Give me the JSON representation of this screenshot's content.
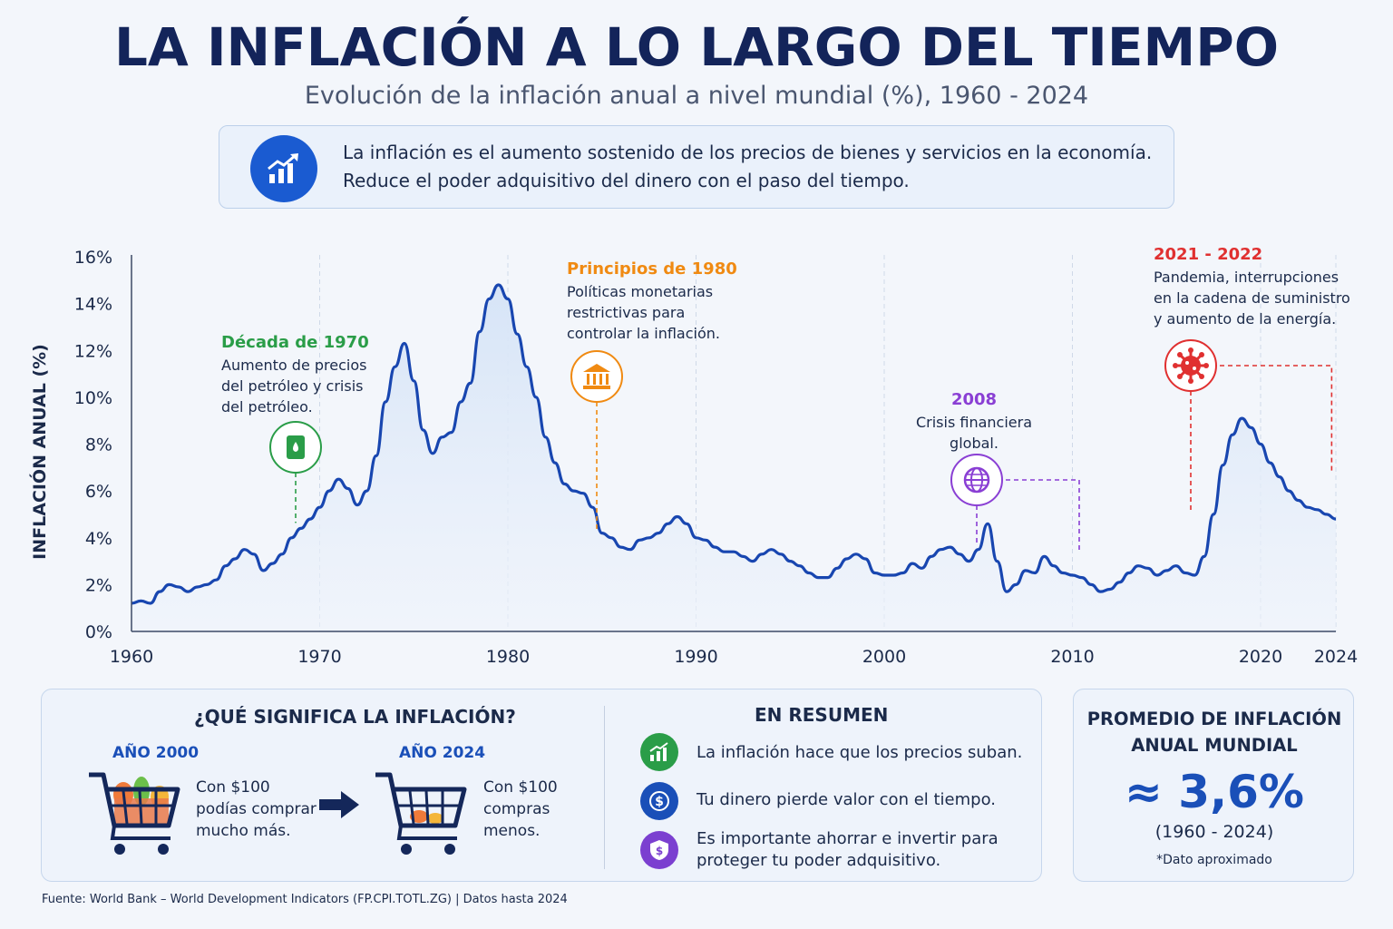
{
  "title": "LA INFLACIÓN A LO LARGO DEL TIEMPO",
  "subtitle": "Evolución de la inflación anual a nivel mundial (%), 1960 - 2024",
  "intro": {
    "line1": "La inflación es el aumento sostenido de los precios de bienes y servicios en la economía.",
    "line2": "Reduce el poder adquisitivo del dinero con el paso del tiempo.",
    "icon": "chart-growth-icon"
  },
  "chart_data": {
    "type": "area",
    "ylabel": "INFLACIÓN ANUAL (%)",
    "xlabel": "",
    "xlim": [
      1960,
      2024
    ],
    "ylim": [
      0,
      16
    ],
    "x_ticks": [
      "1960",
      "1970",
      "1980",
      "1990",
      "2000",
      "2010",
      "2020",
      "2024"
    ],
    "y_ticks": [
      "0%",
      "2%",
      "4%",
      "6%",
      "8%",
      "10%",
      "12%",
      "14%",
      "16%"
    ],
    "grid": "vertical-dashed",
    "line_color": "#1846b0",
    "fill_color": "#d6e4f7",
    "series": [
      {
        "x": [
          1960,
          1960.5,
          1961,
          1961.5,
          1962,
          1962.5,
          1963,
          1963.5,
          1964,
          1964.5,
          1965,
          1965.5,
          1966,
          1966.5,
          1967,
          1967.5,
          1968,
          1968.5,
          1969,
          1969.5,
          1970,
          1970.5,
          1971,
          1971.5,
          1972,
          1972.5,
          1973,
          1973.5,
          1974,
          1974.5,
          1975,
          1975.5,
          1976,
          1976.5,
          1977,
          1977.5,
          1978,
          1978.5,
          1979,
          1979.5,
          1980,
          1980.5,
          1981,
          1981.5,
          1982,
          1982.5,
          1983,
          1983.5,
          1984,
          1984.5,
          1985,
          1985.5,
          1986,
          1986.5,
          1987,
          1987.5,
          1988,
          1988.5,
          1989,
          1989.5,
          1990,
          1990.5,
          1991,
          1991.5,
          1992,
          1992.5,
          1993,
          1993.5,
          1994,
          1994.5,
          1995,
          1995.5,
          1996,
          1996.5,
          1997,
          1997.5,
          1998,
          1998.5,
          1999,
          1999.5,
          2000,
          2000.5,
          2001,
          2001.5,
          2002,
          2002.5,
          2003,
          2003.5,
          2004,
          2004.5,
          2005,
          2005.5,
          2006,
          2006.5,
          2007,
          2007.5,
          2008,
          2008.5,
          2009,
          2009.5,
          2010,
          2010.5,
          2011,
          2011.5,
          2012,
          2012.5,
          2013,
          2013.5,
          2014,
          2014.5,
          2015,
          2015.5,
          2016,
          2016.5,
          2017,
          2017.5,
          2018,
          2018.5,
          2019,
          2019.5,
          2020,
          2020.5,
          2021,
          2021.5,
          2022,
          2022.5,
          2023,
          2023.5,
          2024
        ],
        "y": [
          1.2,
          1.3,
          1.2,
          1.7,
          2.0,
          1.9,
          1.7,
          1.9,
          2.0,
          2.2,
          2.8,
          3.1,
          3.5,
          3.3,
          2.6,
          2.9,
          3.3,
          4.0,
          4.4,
          4.8,
          5.3,
          6.0,
          6.5,
          6.1,
          5.4,
          6.0,
          7.5,
          9.8,
          11.3,
          12.3,
          10.7,
          8.6,
          7.6,
          8.3,
          8.5,
          9.8,
          10.6,
          12.8,
          14.2,
          14.8,
          14.2,
          12.7,
          11.3,
          10.0,
          8.3,
          7.2,
          6.3,
          6.0,
          5.9,
          5.3,
          4.2,
          4.0,
          3.6,
          3.5,
          3.9,
          4.0,
          4.2,
          4.6,
          4.9,
          4.6,
          4.0,
          3.9,
          3.6,
          3.4,
          3.4,
          3.2,
          3.0,
          3.3,
          3.5,
          3.3,
          3.0,
          2.8,
          2.5,
          2.3,
          2.3,
          2.7,
          3.1,
          3.3,
          3.1,
          2.5,
          2.4,
          2.4,
          2.5,
          2.9,
          2.7,
          3.2,
          3.5,
          3.6,
          3.3,
          3.0,
          3.5,
          4.6,
          3.0,
          1.7,
          2.0,
          2.6,
          2.5,
          3.2,
          2.8,
          2.5,
          2.4,
          2.3,
          2.0,
          1.7,
          1.8,
          2.1,
          2.5,
          2.8,
          2.7,
          2.4,
          2.6,
          2.8,
          2.5,
          2.4,
          3.2,
          5.0,
          7.1,
          8.4,
          9.1,
          8.7,
          8.0,
          7.2,
          6.6,
          6.0,
          5.6,
          5.3,
          5.2,
          5.0,
          4.8
        ]
      }
    ],
    "annotations": [
      {
        "id": "decada-1970",
        "title": "Década de 1970",
        "lines": [
          "Aumento de precios",
          "del petróleo y crisis",
          "del petróleo."
        ],
        "color": "#2a9d48",
        "icon": "oil-barrel-icon",
        "year": 1969
      },
      {
        "id": "principios-1980",
        "title": "Principios de 1980",
        "lines": [
          "Políticas monetarias",
          "restrictivas para",
          "controlar la inflación."
        ],
        "color": "#f08a12",
        "icon": "bank-icon",
        "year": 1985.3
      },
      {
        "id": "crisis-2008",
        "title": "2008",
        "lines": [
          "Crisis financiera",
          "global."
        ],
        "color": "#8a3fd4",
        "icon": "globe-icon",
        "year": 2008
      },
      {
        "id": "pandemia-2021",
        "title": "2021 - 2022",
        "lines": [
          "Pandemia, interrupciones",
          "en la cadena de suministro",
          "y aumento de la energía."
        ],
        "color": "#e03030",
        "icon": "virus-icon",
        "year": 2020.5
      }
    ]
  },
  "meaning": {
    "title": "¿QUÉ SIGNIFICA LA INFLACIÓN?",
    "year_a": "AÑO 2000",
    "caption_a": [
      "Con $100",
      "podías comprar",
      "mucho más."
    ],
    "year_b": "AÑO 2024",
    "caption_b": [
      "Con $100",
      "compras",
      "menos."
    ]
  },
  "summary": {
    "title": "EN RESUMEN",
    "items": [
      {
        "icon": "growth-chart-icon",
        "color": "#2a9d48",
        "lines": [
          "La inflación hace que los precios suban."
        ]
      },
      {
        "icon": "dollar-coin-icon",
        "color": "#1a4fb8",
        "lines": [
          "Tu dinero pierde valor con el tiempo."
        ]
      },
      {
        "icon": "shield-dollar-icon",
        "color": "#7b3fd0",
        "lines": [
          "Es importante ahorrar e invertir para",
          "proteger tu poder adquisitivo."
        ]
      }
    ]
  },
  "average": {
    "title_lines": [
      "PROMEDIO DE INFLACIÓN",
      "ANUAL MUNDIAL"
    ],
    "value": "≈ 3,6%",
    "range": "(1960 - 2024)",
    "note": "*Dato aproximado"
  },
  "source": "Fuente: World Bank – World Development Indicators (FP.CPI.TOTL.ZG) | Datos hasta 2024"
}
